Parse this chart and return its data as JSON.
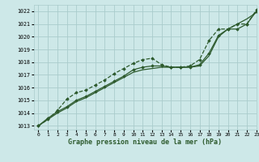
{
  "title": "Graphe pression niveau de la mer (hPa)",
  "bg_color": "#cde8e8",
  "grid_color": "#aacccc",
  "line_color": "#2d5a2d",
  "xlim": [
    -0.5,
    23
  ],
  "ylim": [
    1012.7,
    1022.5
  ],
  "yticks": [
    1013,
    1014,
    1015,
    1016,
    1017,
    1018,
    1019,
    1020,
    1021,
    1022
  ],
  "xticks": [
    0,
    1,
    2,
    3,
    4,
    5,
    6,
    7,
    8,
    9,
    10,
    11,
    12,
    13,
    14,
    15,
    16,
    17,
    18,
    19,
    20,
    21,
    22,
    23
  ],
  "series": [
    {
      "x": [
        0,
        1,
        2,
        3,
        4,
        5,
        6,
        7,
        8,
        9,
        10,
        11,
        12,
        13,
        14,
        15,
        16,
        17,
        18,
        19,
        20,
        21,
        22,
        23
      ],
      "y": [
        1013.0,
        1013.5,
        1014.0,
        1014.4,
        1014.9,
        1015.2,
        1015.6,
        1016.0,
        1016.4,
        1016.8,
        1017.2,
        1017.4,
        1017.5,
        1017.6,
        1017.6,
        1017.6,
        1017.6,
        1017.7,
        1018.5,
        1020.0,
        1020.6,
        1021.0,
        1021.4,
        1021.9
      ],
      "style": "solid",
      "marker": null,
      "lw": 0.9
    },
    {
      "x": [
        0,
        1,
        2,
        3,
        4,
        5,
        6,
        7,
        8,
        9,
        10,
        11,
        12,
        13,
        14,
        15,
        16,
        17,
        18,
        19,
        20,
        21,
        22,
        23
      ],
      "y": [
        1013.0,
        1013.6,
        1014.1,
        1014.5,
        1015.0,
        1015.3,
        1015.7,
        1016.1,
        1016.5,
        1016.9,
        1017.4,
        1017.6,
        1017.7,
        1017.7,
        1017.6,
        1017.6,
        1017.6,
        1017.8,
        1018.7,
        1020.1,
        1020.6,
        1020.6,
        1021.0,
        1022.0
      ],
      "style": "solid",
      "marker": "D",
      "lw": 0.9
    },
    {
      "x": [
        0,
        1,
        2,
        3,
        4,
        5,
        6,
        7,
        8,
        9,
        10,
        11,
        12,
        13,
        14,
        15,
        16,
        17,
        18,
        19,
        20,
        21,
        22,
        23
      ],
      "y": [
        1013.0,
        1013.5,
        1014.2,
        1015.1,
        1015.6,
        1015.8,
        1016.2,
        1016.6,
        1017.1,
        1017.5,
        1017.9,
        1018.2,
        1018.3,
        1017.8,
        1017.6,
        1017.6,
        1017.7,
        1018.2,
        1019.7,
        1020.6,
        1020.6,
        1021.0,
        1021.0,
        1022.1
      ],
      "style": "dashed",
      "marker": "D",
      "lw": 0.9
    }
  ]
}
